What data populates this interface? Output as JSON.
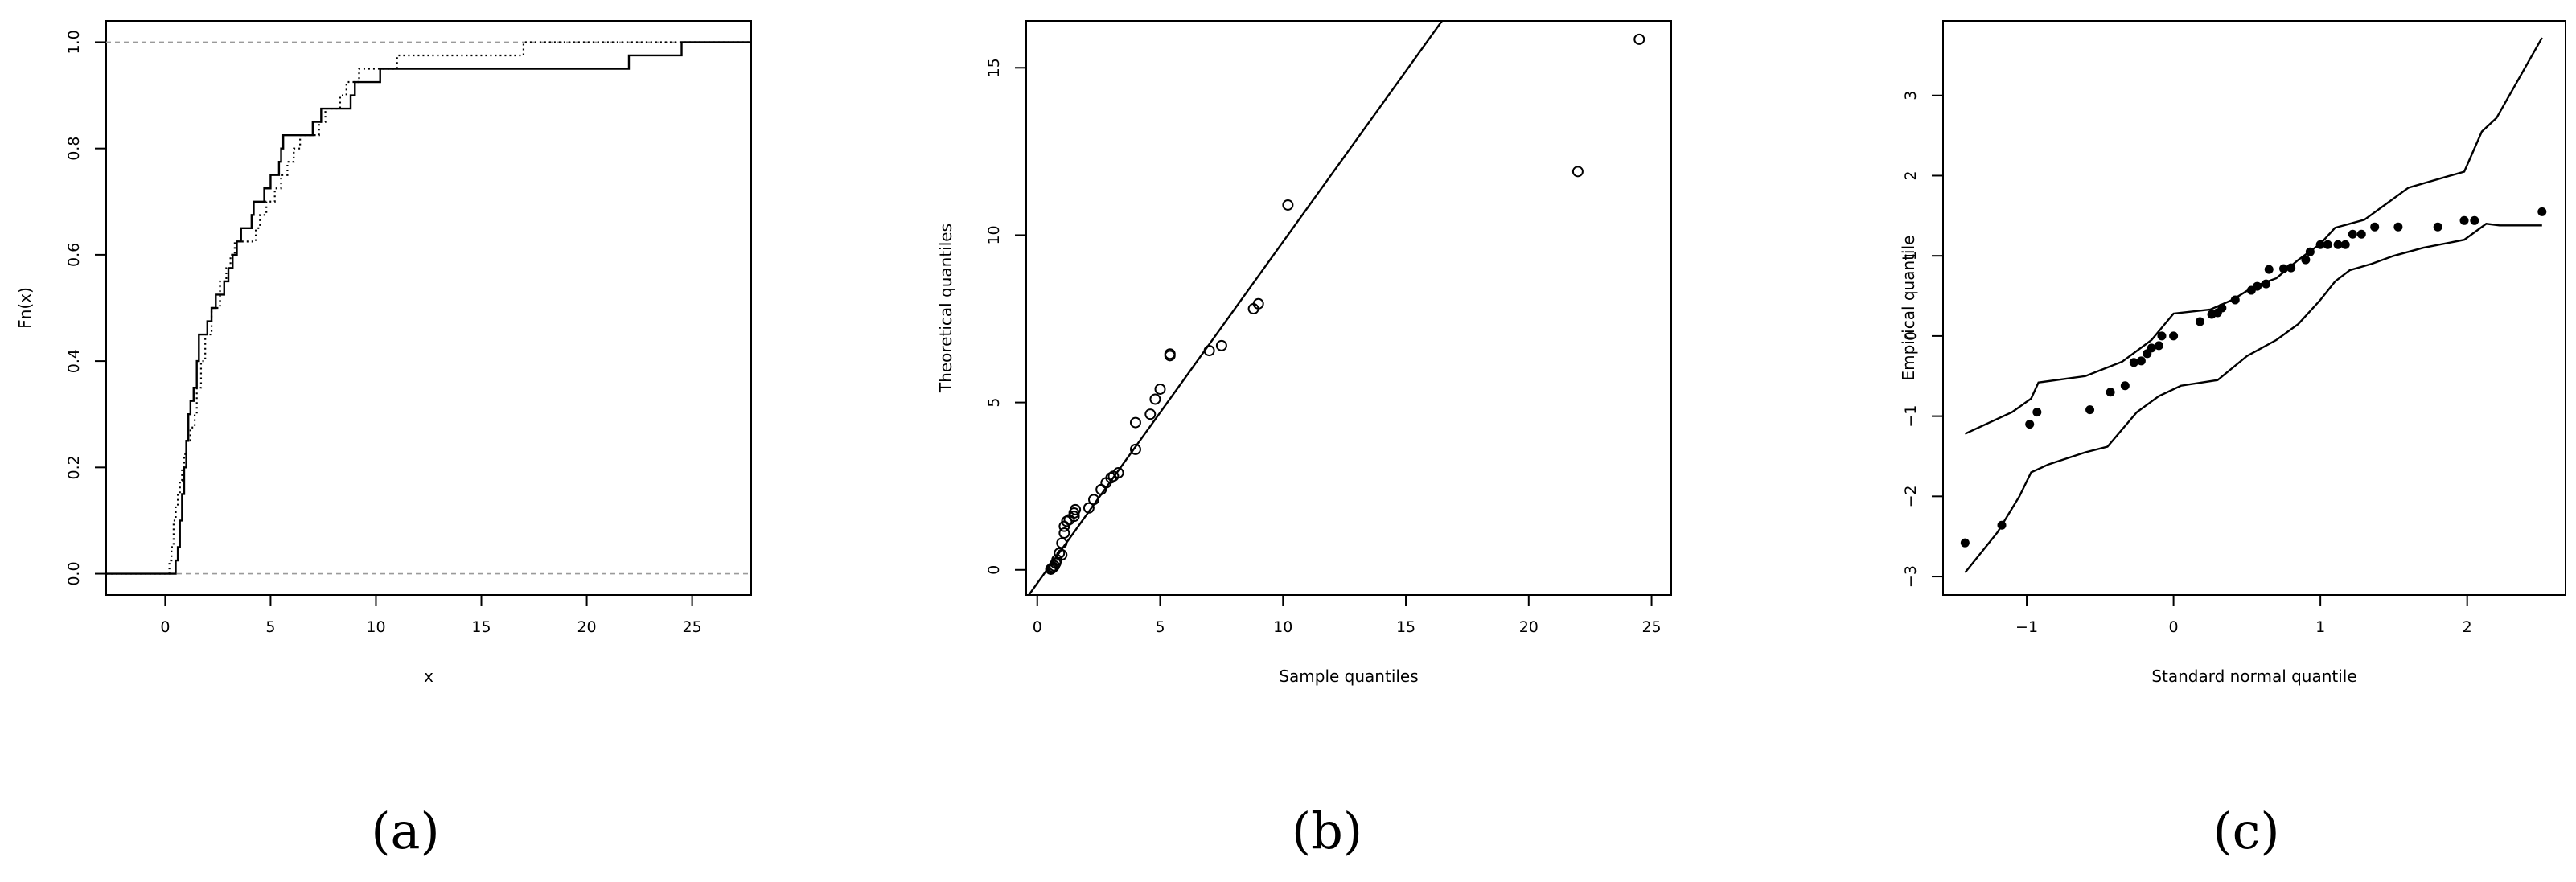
{
  "chart_data": [
    {
      "panel": "(a)",
      "type": "line",
      "subtype": "ecdf-step",
      "xlabel": "x",
      "ylabel": "Fn(x)",
      "xlim": [
        -2.8,
        27.8
      ],
      "ylim": [
        -0.04,
        1.04
      ],
      "xticks": [
        "0",
        "5",
        "10",
        "15",
        "20",
        "25"
      ],
      "xtick_values": [
        0,
        5,
        10,
        15,
        20,
        25
      ],
      "yticks": [
        "0.0",
        "0.2",
        "0.4",
        "0.6",
        "0.8",
        "1.0"
      ],
      "ytick_values": [
        0,
        0.2,
        0.4,
        0.6,
        0.8,
        1.0
      ],
      "reference_lines": [
        0,
        1
      ],
      "series": [
        {
          "style": "solid",
          "color": "#000000",
          "points": [
            [
              -2.8,
              0
            ],
            [
              0.5,
              0
            ],
            [
              0.5,
              0.025
            ],
            [
              0.6,
              0.05
            ],
            [
              0.7,
              0.1
            ],
            [
              0.8,
              0.15
            ],
            [
              0.9,
              0.2
            ],
            [
              1.0,
              0.25
            ],
            [
              1.1,
              0.3
            ],
            [
              1.2,
              0.325
            ],
            [
              1.35,
              0.35
            ],
            [
              1.5,
              0.4
            ],
            [
              1.6,
              0.45
            ],
            [
              2.0,
              0.475
            ],
            [
              2.2,
              0.5
            ],
            [
              2.4,
              0.525
            ],
            [
              2.8,
              0.55
            ],
            [
              3.0,
              0.575
            ],
            [
              3.2,
              0.6
            ],
            [
              3.4,
              0.625
            ],
            [
              3.6,
              0.65
            ],
            [
              4.1,
              0.675
            ],
            [
              4.2,
              0.7
            ],
            [
              4.7,
              0.725
            ],
            [
              5.0,
              0.75
            ],
            [
              5.4,
              0.775
            ],
            [
              5.5,
              0.8
            ],
            [
              5.6,
              0.825
            ],
            [
              7.0,
              0.85
            ],
            [
              7.4,
              0.875
            ],
            [
              8.8,
              0.9
            ],
            [
              9.0,
              0.925
            ],
            [
              10.2,
              0.95
            ],
            [
              22.0,
              0.975
            ],
            [
              24.5,
              1.0
            ],
            [
              27.8,
              1.0
            ]
          ]
        },
        {
          "style": "dotted",
          "color": "#000000",
          "points": [
            [
              -2.8,
              0
            ],
            [
              0.2,
              0
            ],
            [
              0.2,
              0.025
            ],
            [
              0.3,
              0.05
            ],
            [
              0.4,
              0.1
            ],
            [
              0.5,
              0.125
            ],
            [
              0.6,
              0.15
            ],
            [
              0.7,
              0.175
            ],
            [
              0.8,
              0.2
            ],
            [
              0.9,
              0.225
            ],
            [
              1.0,
              0.25
            ],
            [
              1.2,
              0.275
            ],
            [
              1.4,
              0.3
            ],
            [
              1.5,
              0.35
            ],
            [
              1.7,
              0.4
            ],
            [
              1.9,
              0.45
            ],
            [
              2.2,
              0.5
            ],
            [
              2.6,
              0.55
            ],
            [
              2.9,
              0.575
            ],
            [
              3.1,
              0.6
            ],
            [
              3.3,
              0.625
            ],
            [
              4.3,
              0.65
            ],
            [
              4.5,
              0.675
            ],
            [
              4.8,
              0.7
            ],
            [
              5.2,
              0.725
            ],
            [
              5.5,
              0.75
            ],
            [
              5.8,
              0.775
            ],
            [
              6.1,
              0.8
            ],
            [
              6.4,
              0.825
            ],
            [
              7.3,
              0.85
            ],
            [
              7.6,
              0.875
            ],
            [
              8.3,
              0.9
            ],
            [
              8.6,
              0.925
            ],
            [
              9.2,
              0.95
            ],
            [
              11.0,
              0.975
            ],
            [
              17.0,
              1.0
            ],
            [
              27.8,
              1.0
            ]
          ]
        }
      ]
    },
    {
      "panel": "(b)",
      "type": "scatter",
      "xlabel": "Sample quantiles",
      "ylabel": "Theoretical quantiles",
      "xlim": [
        -0.45,
        25.8
      ],
      "ylim": [
        -0.75,
        16.4
      ],
      "xticks": [
        "0",
        "5",
        "10",
        "15",
        "20",
        "25"
      ],
      "xtick_values": [
        0,
        5,
        10,
        15,
        20,
        25
      ],
      "yticks": [
        "0",
        "5",
        "10",
        "15"
      ],
      "ytick_values": [
        0,
        5,
        10,
        15
      ],
      "reference_line": {
        "intercept": -0.4,
        "slope": 1.02
      },
      "marker": "open-circle",
      "points": [
        [
          0.55,
          0.02
        ],
        [
          0.6,
          0.05
        ],
        [
          0.65,
          0.08
        ],
        [
          0.7,
          0.12
        ],
        [
          0.75,
          0.2
        ],
        [
          0.8,
          0.3
        ],
        [
          0.9,
          0.5
        ],
        [
          1.0,
          0.45
        ],
        [
          1.0,
          0.8
        ],
        [
          1.1,
          1.1
        ],
        [
          1.1,
          1.3
        ],
        [
          1.2,
          1.45
        ],
        [
          1.3,
          1.5
        ],
        [
          1.5,
          1.6
        ],
        [
          1.5,
          1.7
        ],
        [
          1.55,
          1.8
        ],
        [
          2.1,
          1.85
        ],
        [
          2.3,
          2.1
        ],
        [
          2.6,
          2.4
        ],
        [
          2.8,
          2.6
        ],
        [
          3.0,
          2.75
        ],
        [
          3.1,
          2.8
        ],
        [
          3.3,
          2.9
        ],
        [
          4.0,
          3.6
        ],
        [
          4.0,
          4.4
        ],
        [
          4.6,
          4.65
        ],
        [
          4.8,
          5.1
        ],
        [
          5.0,
          5.4
        ],
        [
          5.4,
          6.4
        ],
        [
          5.4,
          6.45
        ],
        [
          7.0,
          6.55
        ],
        [
          7.5,
          6.7
        ],
        [
          8.8,
          7.8
        ],
        [
          9.0,
          7.95
        ],
        [
          10.2,
          10.9
        ],
        [
          22.0,
          11.9
        ],
        [
          24.5,
          15.85
        ]
      ]
    },
    {
      "panel": "(c)",
      "type": "scatter",
      "xlabel": "Standard normal quantile",
      "ylabel": "Empirical quantile",
      "xlim": [
        -1.57,
        2.67
      ],
      "ylim": [
        -3.23,
        3.93
      ],
      "xticks": [
        "−1",
        "0",
        "1",
        "2"
      ],
      "xtick_values": [
        -1,
        0,
        1,
        2
      ],
      "yticks": [
        "−3",
        "−2",
        "−1",
        "0",
        "1",
        "2",
        "3"
      ],
      "ytick_values": [
        -3,
        -2,
        -1,
        0,
        1,
        2,
        3
      ],
      "marker": "filled-circle",
      "points": [
        [
          -1.42,
          -2.58
        ],
        [
          -1.17,
          -2.36
        ],
        [
          -0.98,
          -1.1
        ],
        [
          -0.93,
          -0.95
        ],
        [
          -0.57,
          -0.92
        ],
        [
          -0.43,
          -0.7
        ],
        [
          -0.33,
          -0.62
        ],
        [
          -0.27,
          -0.33
        ],
        [
          -0.22,
          -0.31
        ],
        [
          -0.18,
          -0.22
        ],
        [
          -0.15,
          -0.15
        ],
        [
          -0.1,
          -0.12
        ],
        [
          -0.08,
          0.0
        ],
        [
          0.0,
          0.0
        ],
        [
          0.18,
          0.18
        ],
        [
          0.26,
          0.27
        ],
        [
          0.3,
          0.29
        ],
        [
          0.33,
          0.35
        ],
        [
          0.42,
          0.45
        ],
        [
          0.53,
          0.57
        ],
        [
          0.57,
          0.62
        ],
        [
          0.63,
          0.65
        ],
        [
          0.65,
          0.83
        ],
        [
          0.75,
          0.84
        ],
        [
          0.8,
          0.85
        ],
        [
          0.9,
          0.95
        ],
        [
          0.93,
          1.05
        ],
        [
          1.0,
          1.14
        ],
        [
          1.05,
          1.14
        ],
        [
          1.12,
          1.14
        ],
        [
          1.17,
          1.14
        ],
        [
          1.22,
          1.27
        ],
        [
          1.28,
          1.27
        ],
        [
          1.37,
          1.36
        ],
        [
          1.53,
          1.36
        ],
        [
          1.8,
          1.36
        ],
        [
          1.98,
          1.44
        ],
        [
          2.05,
          1.44
        ],
        [
          2.51,
          1.55
        ]
      ],
      "upper_band": [
        [
          -1.42,
          -1.22
        ],
        [
          -1.1,
          -0.95
        ],
        [
          -0.97,
          -0.78
        ],
        [
          -0.92,
          -0.58
        ],
        [
          -0.6,
          -0.5
        ],
        [
          -0.35,
          -0.32
        ],
        [
          -0.15,
          -0.05
        ],
        [
          0.0,
          0.28
        ],
        [
          0.25,
          0.33
        ],
        [
          0.4,
          0.45
        ],
        [
          0.55,
          0.62
        ],
        [
          0.7,
          0.72
        ],
        [
          0.85,
          0.95
        ],
        [
          1.0,
          1.15
        ],
        [
          1.1,
          1.35
        ],
        [
          1.3,
          1.45
        ],
        [
          1.45,
          1.65
        ],
        [
          1.6,
          1.85
        ],
        [
          1.98,
          2.05
        ],
        [
          2.1,
          2.55
        ],
        [
          2.2,
          2.72
        ],
        [
          2.51,
          3.72
        ]
      ],
      "lower_band": [
        [
          -1.42,
          -2.95
        ],
        [
          -1.2,
          -2.45
        ],
        [
          -1.05,
          -2.0
        ],
        [
          -0.97,
          -1.7
        ],
        [
          -0.85,
          -1.6
        ],
        [
          -0.6,
          -1.45
        ],
        [
          -0.45,
          -1.38
        ],
        [
          -0.25,
          -0.95
        ],
        [
          -0.1,
          -0.75
        ],
        [
          0.05,
          -0.62
        ],
        [
          0.3,
          -0.55
        ],
        [
          0.5,
          -0.25
        ],
        [
          0.7,
          -0.05
        ],
        [
          0.85,
          0.15
        ],
        [
          1.0,
          0.45
        ],
        [
          1.1,
          0.68
        ],
        [
          1.2,
          0.82
        ],
        [
          1.35,
          0.9
        ],
        [
          1.5,
          1.0
        ],
        [
          1.7,
          1.1
        ],
        [
          1.98,
          1.2
        ],
        [
          2.13,
          1.4
        ],
        [
          2.22,
          1.38
        ],
        [
          2.51,
          1.38
        ]
      ]
    }
  ],
  "panel_labels": [
    "(a)",
    "(b)",
    "(c)"
  ]
}
